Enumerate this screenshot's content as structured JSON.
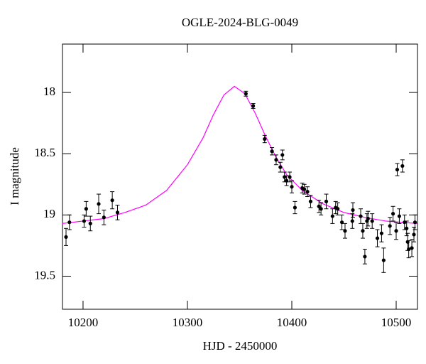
{
  "chart_data": {
    "type": "scatter",
    "title": "OGLE-2024-BLG-0049",
    "xlabel": "HJD - 2450000",
    "ylabel": "I magnitude",
    "xlim": [
      10180.3,
      10520.4
    ],
    "ylim": [
      19.77,
      17.605
    ],
    "xticks": [
      10200,
      10300,
      10400,
      10500
    ],
    "yticks": [
      18,
      18.5,
      19,
      19.5
    ],
    "series": [
      {
        "mode": "line",
        "color": "#ff00ff",
        "x": [
          10180,
          10200,
          10220,
          10240,
          10260,
          10280,
          10300,
          10315,
          10325,
          10335,
          10345,
          10355,
          10365,
          10375,
          10385,
          10395,
          10410,
          10430,
          10450,
          10470,
          10490,
          10520
        ],
        "values": [
          19.07,
          19.05,
          19.03,
          18.98,
          18.92,
          18.8,
          18.59,
          18.37,
          18.18,
          18.02,
          17.95,
          18.01,
          18.17,
          18.36,
          18.53,
          18.67,
          18.8,
          18.91,
          18.98,
          19.02,
          19.05,
          19.07
        ]
      },
      {
        "mode": "errorbar",
        "color": "#000000",
        "x": [
          10183.7,
          10187,
          10201,
          10203,
          10207,
          10215,
          10220,
          10228,
          10233,
          10356,
          10363,
          10374,
          10381,
          10385,
          10389,
          10391,
          10393,
          10395,
          10398,
          10400,
          10403,
          10410,
          10412,
          10415,
          10418,
          10426,
          10428,
          10433,
          10439,
          10442,
          10444,
          10448,
          10451,
          10458,
          10458.5,
          10466,
          10468,
          10470,
          10472,
          10473,
          10477,
          10482,
          10486,
          10488,
          10494,
          10497,
          10500,
          10501,
          10503,
          10506,
          10508,
          10510,
          10511,
          10512,
          10515,
          10517,
          10518
        ],
        "values": [
          19.18,
          19.06,
          19.05,
          18.95,
          19.07,
          18.91,
          19.02,
          18.88,
          18.98,
          18.01,
          18.11,
          18.38,
          18.48,
          18.55,
          18.61,
          18.51,
          18.69,
          18.72,
          18.69,
          18.77,
          18.94,
          18.78,
          18.79,
          18.81,
          18.89,
          18.93,
          18.95,
          18.89,
          19.01,
          18.94,
          18.95,
          19.06,
          19.13,
          19.05,
          18.96,
          19.01,
          19.13,
          19.34,
          19.05,
          19.03,
          19.05,
          19.19,
          19.15,
          19.37,
          19.09,
          18.99,
          19.13,
          18.63,
          19.01,
          18.6,
          19.06,
          19.11,
          19.22,
          19.28,
          19.27,
          19.16,
          19.06
        ],
        "errors": [
          0.07,
          0.06,
          0.05,
          0.06,
          0.06,
          0.08,
          0.06,
          0.07,
          0.06,
          0.02,
          0.02,
          0.03,
          0.03,
          0.04,
          0.04,
          0.04,
          0.04,
          0.04,
          0.04,
          0.05,
          0.05,
          0.04,
          0.04,
          0.04,
          0.05,
          0.05,
          0.05,
          0.06,
          0.06,
          0.05,
          0.05,
          0.06,
          0.06,
          0.06,
          0.06,
          0.06,
          0.06,
          0.06,
          0.06,
          0.06,
          0.06,
          0.07,
          0.07,
          0.1,
          0.07,
          0.06,
          0.07,
          0.05,
          0.06,
          0.05,
          0.06,
          0.06,
          0.07,
          0.07,
          0.07,
          0.06,
          0.06
        ]
      }
    ]
  }
}
